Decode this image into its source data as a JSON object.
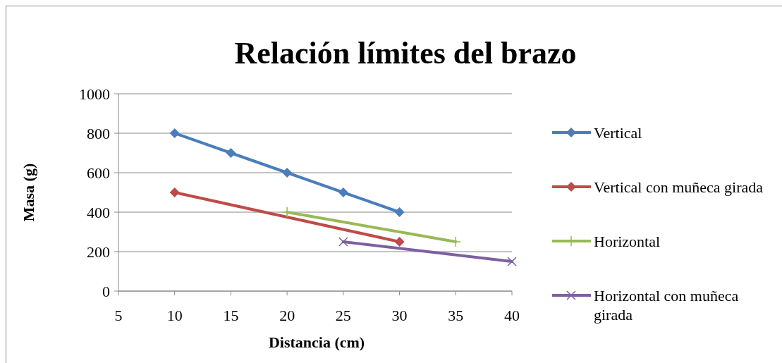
{
  "chart_data": {
    "type": "line",
    "title": "Relación límites del brazo",
    "xlabel": "Distancia (cm)",
    "ylabel": "Masa (g)",
    "xlim": [
      5,
      40
    ],
    "xticks": [
      5,
      10,
      15,
      20,
      25,
      30,
      35,
      40
    ],
    "ylim": [
      0,
      1000
    ],
    "yticks": [
      0,
      200,
      400,
      600,
      800,
      1000
    ],
    "grid": "y",
    "legend": "right",
    "series": [
      {
        "name": "Vertical",
        "color": "#4a7ebb",
        "marker": "diamond",
        "x": [
          10,
          15,
          20,
          25,
          30
        ],
        "values": [
          800,
          700,
          600,
          500,
          400
        ]
      },
      {
        "name": "Vertical con muñeca girada",
        "color": "#be4b48",
        "marker": "diamond",
        "x": [
          10,
          30
        ],
        "values": [
          500,
          250
        ]
      },
      {
        "name": "Horizontal",
        "color": "#98b954",
        "marker": "plus",
        "x": [
          20,
          35
        ],
        "values": [
          400,
          250
        ]
      },
      {
        "name": "Horizontal con muñeca girada",
        "color": "#7d60a0",
        "marker": "cross",
        "x": [
          25,
          40
        ],
        "values": [
          250,
          150
        ]
      }
    ]
  }
}
